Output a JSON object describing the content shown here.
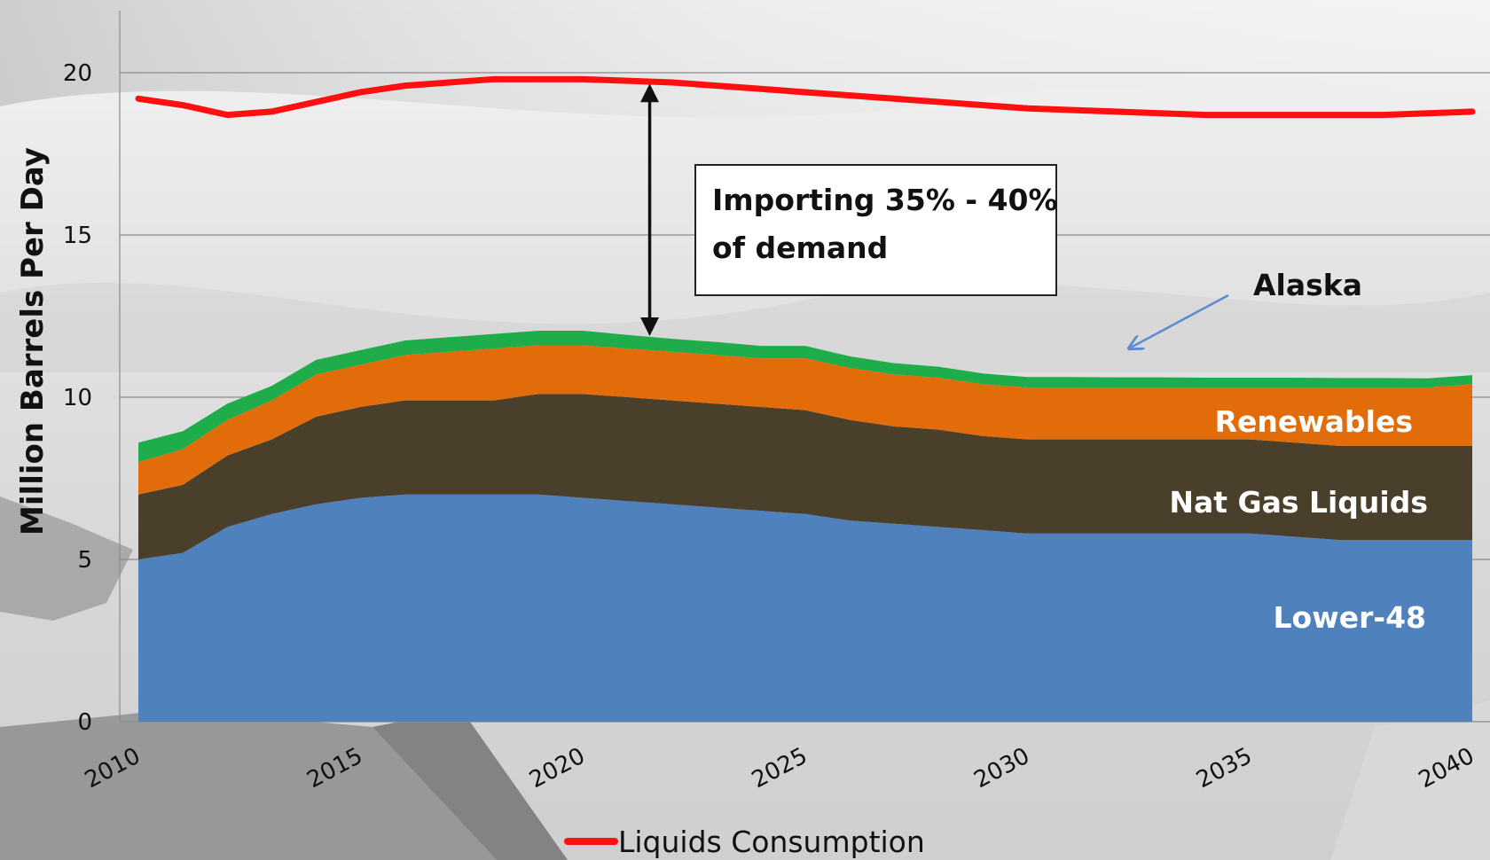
{
  "chart_data": {
    "type": "area",
    "ylabel": "Million Barrels Per Day",
    "ylim": [
      0,
      22
    ],
    "yticks": [
      0,
      5,
      10,
      15,
      20
    ],
    "xlim": [
      2010,
      2040
    ],
    "xticks": [
      2010,
      2015,
      2020,
      2025,
      2030,
      2035,
      2040
    ],
    "grid": true,
    "stacked": true,
    "x": [
      2010,
      2011,
      2012,
      2013,
      2014,
      2015,
      2016,
      2017,
      2018,
      2019,
      2020,
      2021,
      2022,
      2023,
      2024,
      2025,
      2026,
      2027,
      2028,
      2029,
      2030,
      2031,
      2032,
      2033,
      2034,
      2035,
      2036,
      2037,
      2038,
      2039,
      2040
    ],
    "series": [
      {
        "name": "Lower-48",
        "color": "#4f81bd",
        "values": [
          5.0,
          5.2,
          6.0,
          6.4,
          6.7,
          6.9,
          7.0,
          7.0,
          7.0,
          7.0,
          6.9,
          6.8,
          6.7,
          6.6,
          6.5,
          6.4,
          6.2,
          6.1,
          6.0,
          5.9,
          5.8,
          5.8,
          5.8,
          5.8,
          5.8,
          5.8,
          5.7,
          5.6,
          5.6,
          5.6,
          5.6
        ]
      },
      {
        "name": "Nat Gas Liquids",
        "color": "#4a3f2a",
        "values": [
          2.0,
          2.1,
          2.2,
          2.3,
          2.7,
          2.8,
          2.9,
          2.9,
          2.9,
          3.1,
          3.2,
          3.2,
          3.2,
          3.2,
          3.2,
          3.2,
          3.1,
          3.0,
          3.0,
          2.9,
          2.9,
          2.9,
          2.9,
          2.9,
          2.9,
          2.9,
          2.9,
          2.9,
          2.9,
          2.9,
          2.9
        ]
      },
      {
        "name": "Renewables",
        "color": "#e36c0a",
        "values": [
          1.0,
          1.1,
          1.1,
          1.2,
          1.3,
          1.3,
          1.4,
          1.5,
          1.6,
          1.5,
          1.5,
          1.5,
          1.5,
          1.5,
          1.5,
          1.6,
          1.6,
          1.6,
          1.6,
          1.6,
          1.6,
          1.6,
          1.6,
          1.6,
          1.6,
          1.6,
          1.7,
          1.8,
          1.8,
          1.8,
          1.9
        ]
      },
      {
        "name": "Alaska",
        "color": "#1fad4b",
        "values": [
          0.6,
          0.55,
          0.5,
          0.45,
          0.45,
          0.45,
          0.45,
          0.45,
          0.45,
          0.45,
          0.45,
          0.42,
          0.4,
          0.4,
          0.38,
          0.38,
          0.36,
          0.35,
          0.34,
          0.33,
          0.32,
          0.32,
          0.31,
          0.31,
          0.3,
          0.3,
          0.3,
          0.29,
          0.29,
          0.28,
          0.28
        ]
      },
      {
        "name": "Liquids Consumption",
        "type": "line",
        "color": "#ff1010",
        "values": [
          19.2,
          19.0,
          18.7,
          18.8,
          19.1,
          19.4,
          19.6,
          19.7,
          19.8,
          19.8,
          19.8,
          19.75,
          19.7,
          19.6,
          19.5,
          19.4,
          19.3,
          19.2,
          19.1,
          19.0,
          18.9,
          18.85,
          18.8,
          18.75,
          18.7,
          18.7,
          18.7,
          18.7,
          18.7,
          18.75,
          18.8
        ]
      }
    ],
    "annotations": [
      {
        "text_lines": [
          "Importing 35% - 40%",
          "of demand"
        ],
        "x": 2021.5,
        "y_from": 11.9,
        "y_to": 19.65
      },
      {
        "text": "Alaska",
        "target_x": 2032,
        "target_y": 11.6
      }
    ],
    "legend": {
      "placement": "bottom-center",
      "entries": [
        "Liquids Consumption"
      ]
    }
  }
}
